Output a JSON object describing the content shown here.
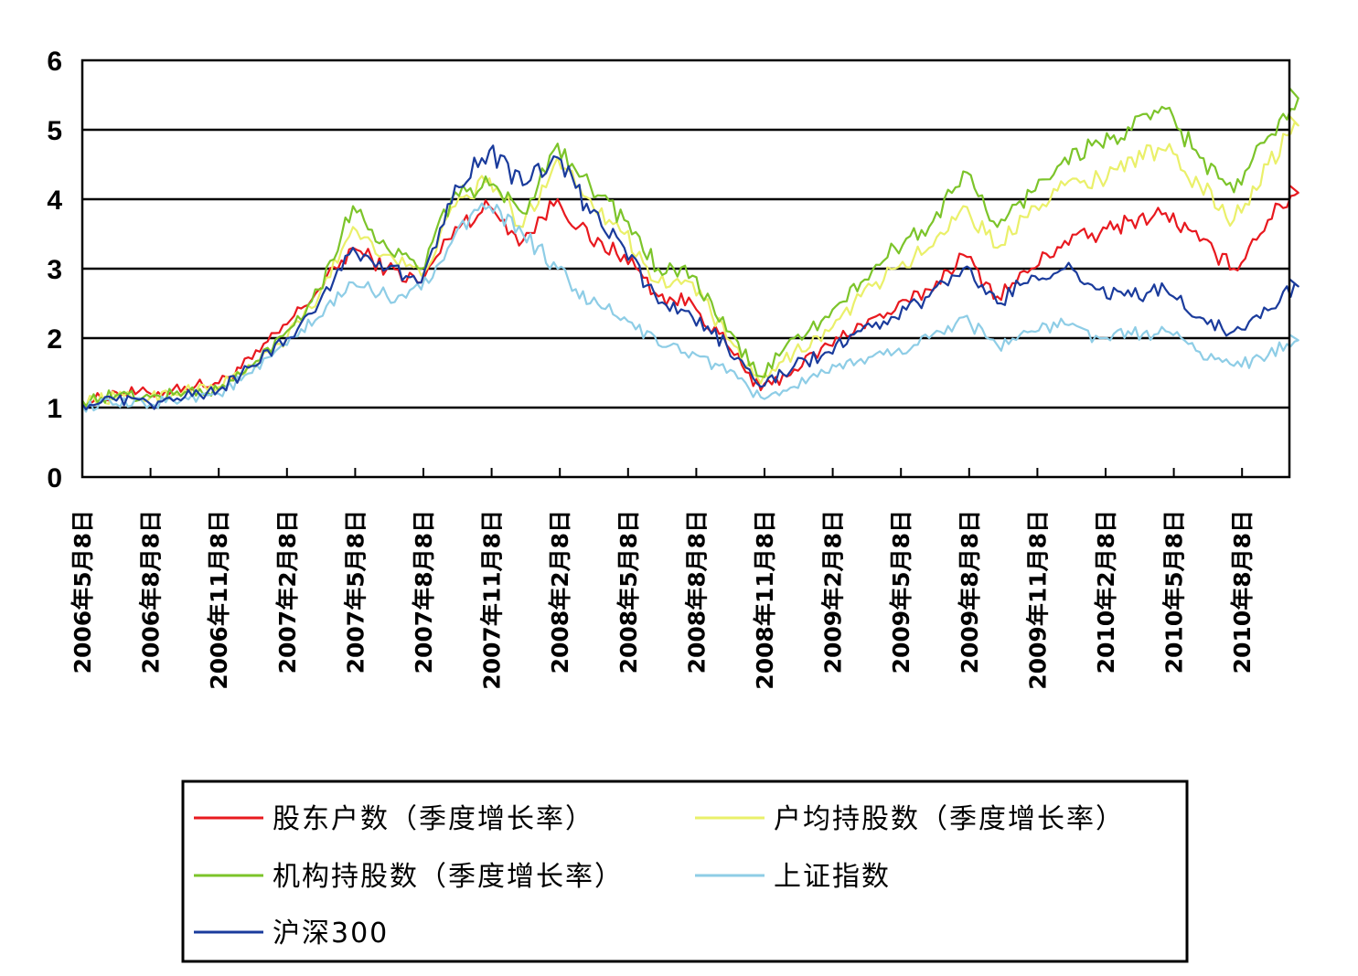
{
  "chart_data": {
    "type": "line",
    "title": "",
    "xlabel": "",
    "ylabel": "",
    "ylim": [
      0,
      6
    ],
    "yticks": [
      "0",
      "1",
      "2",
      "3",
      "4",
      "5",
      "6"
    ],
    "grid": "horizontal",
    "legend_position": "bottom",
    "x_tick_labels": [
      "2006年5月8日",
      "2006年8月8日",
      "2006年11月8日",
      "2007年2月8日",
      "2007年5月8日",
      "2007年8月8日",
      "2007年11月8日",
      "2008年2月8日",
      "2008年5月8日",
      "2008年8月8日",
      "2008年11月8日",
      "2009年2月8日",
      "2009年5月8日",
      "2009年8月8日",
      "2009年11月8日",
      "2010年2月8日",
      "2010年5月8日",
      "2010年8月8日"
    ],
    "x": [
      "2006-05-08",
      "2006-06-23",
      "2006-08-08",
      "2006-09-23",
      "2006-11-08",
      "2006-12-23",
      "2007-02-08",
      "2007-03-23",
      "2007-05-08",
      "2007-06-23",
      "2007-08-08",
      "2007-09-23",
      "2007-11-08",
      "2007-12-23",
      "2008-02-08",
      "2008-03-23",
      "2008-05-08",
      "2008-06-23",
      "2008-08-08",
      "2008-09-23",
      "2008-11-08",
      "2008-12-23",
      "2009-02-08",
      "2009-03-23",
      "2009-05-08",
      "2009-06-23",
      "2009-08-08",
      "2009-09-23",
      "2009-11-08",
      "2009-12-23",
      "2010-02-08",
      "2010-03-23",
      "2010-05-08",
      "2010-06-23",
      "2010-08-08",
      "2010-09-23",
      "2010-11-08"
    ],
    "series": [
      {
        "name": "股东户数（季度增长率）",
        "color": "#e8191f",
        "values": [
          1.05,
          1.22,
          1.2,
          1.3,
          1.35,
          1.7,
          2.2,
          2.7,
          3.3,
          3.0,
          2.8,
          3.6,
          3.9,
          3.4,
          4.0,
          3.4,
          3.2,
          2.6,
          2.5,
          1.9,
          1.25,
          1.55,
          1.9,
          2.2,
          2.4,
          2.7,
          3.2,
          2.6,
          3.0,
          3.4,
          3.5,
          3.7,
          3.8,
          3.4,
          3.0,
          3.7,
          4.2
        ]
      },
      {
        "name": "户均持股数（季度增长率）",
        "color": "#eaf06a",
        "values": [
          1.1,
          1.15,
          1.15,
          1.25,
          1.3,
          1.6,
          2.0,
          2.6,
          3.6,
          3.2,
          2.9,
          3.9,
          4.3,
          3.6,
          4.6,
          4.0,
          3.5,
          2.8,
          2.8,
          2.0,
          1.35,
          1.8,
          2.1,
          2.6,
          3.0,
          3.3,
          3.9,
          3.3,
          3.9,
          4.2,
          4.3,
          4.6,
          4.7,
          4.2,
          3.7,
          4.5,
          5.2
        ]
      },
      {
        "name": "机构持股数（季度增长率）",
        "color": "#7cc42a",
        "values": [
          1.1,
          1.18,
          1.15,
          1.22,
          1.25,
          1.6,
          2.1,
          2.7,
          3.9,
          3.3,
          3.0,
          4.1,
          4.2,
          3.8,
          4.8,
          4.2,
          3.7,
          3.0,
          2.9,
          2.1,
          1.45,
          2.0,
          2.3,
          2.8,
          3.3,
          3.6,
          4.4,
          3.6,
          4.1,
          4.6,
          4.8,
          5.0,
          5.3,
          4.6,
          4.1,
          4.9,
          5.6
        ]
      },
      {
        "name": "上证指数",
        "color": "#8ecde6",
        "values": [
          1.02,
          1.05,
          1.05,
          1.15,
          1.2,
          1.5,
          1.9,
          2.3,
          2.8,
          2.6,
          2.7,
          3.5,
          3.9,
          3.5,
          3.0,
          2.5,
          2.3,
          1.9,
          1.8,
          1.5,
          1.15,
          1.3,
          1.5,
          1.7,
          1.8,
          2.0,
          2.3,
          1.9,
          2.1,
          2.2,
          2.0,
          2.05,
          2.1,
          1.8,
          1.6,
          1.75,
          2.05
        ]
      },
      {
        "name": "沪深300",
        "color": "#1a3b9c",
        "values": [
          1.05,
          1.1,
          1.05,
          1.15,
          1.25,
          1.6,
          2.0,
          2.5,
          3.3,
          3.0,
          2.8,
          4.2,
          4.7,
          4.2,
          4.6,
          3.8,
          3.3,
          2.5,
          2.3,
          1.9,
          1.3,
          1.6,
          1.8,
          2.1,
          2.3,
          2.6,
          3.0,
          2.5,
          2.9,
          3.0,
          2.7,
          2.6,
          2.7,
          2.3,
          2.1,
          2.4,
          2.85
        ]
      }
    ]
  },
  "legend": [
    {
      "label": "股东户数（季度增长率）",
      "color": "#e8191f"
    },
    {
      "label": "户均持股数（季度增长率）",
      "color": "#eaf06a"
    },
    {
      "label": "机构持股数（季度增长率）",
      "color": "#7cc42a"
    },
    {
      "label": "上证指数",
      "color": "#8ecde6"
    },
    {
      "label": "沪深300",
      "color": "#1a3b9c"
    }
  ]
}
